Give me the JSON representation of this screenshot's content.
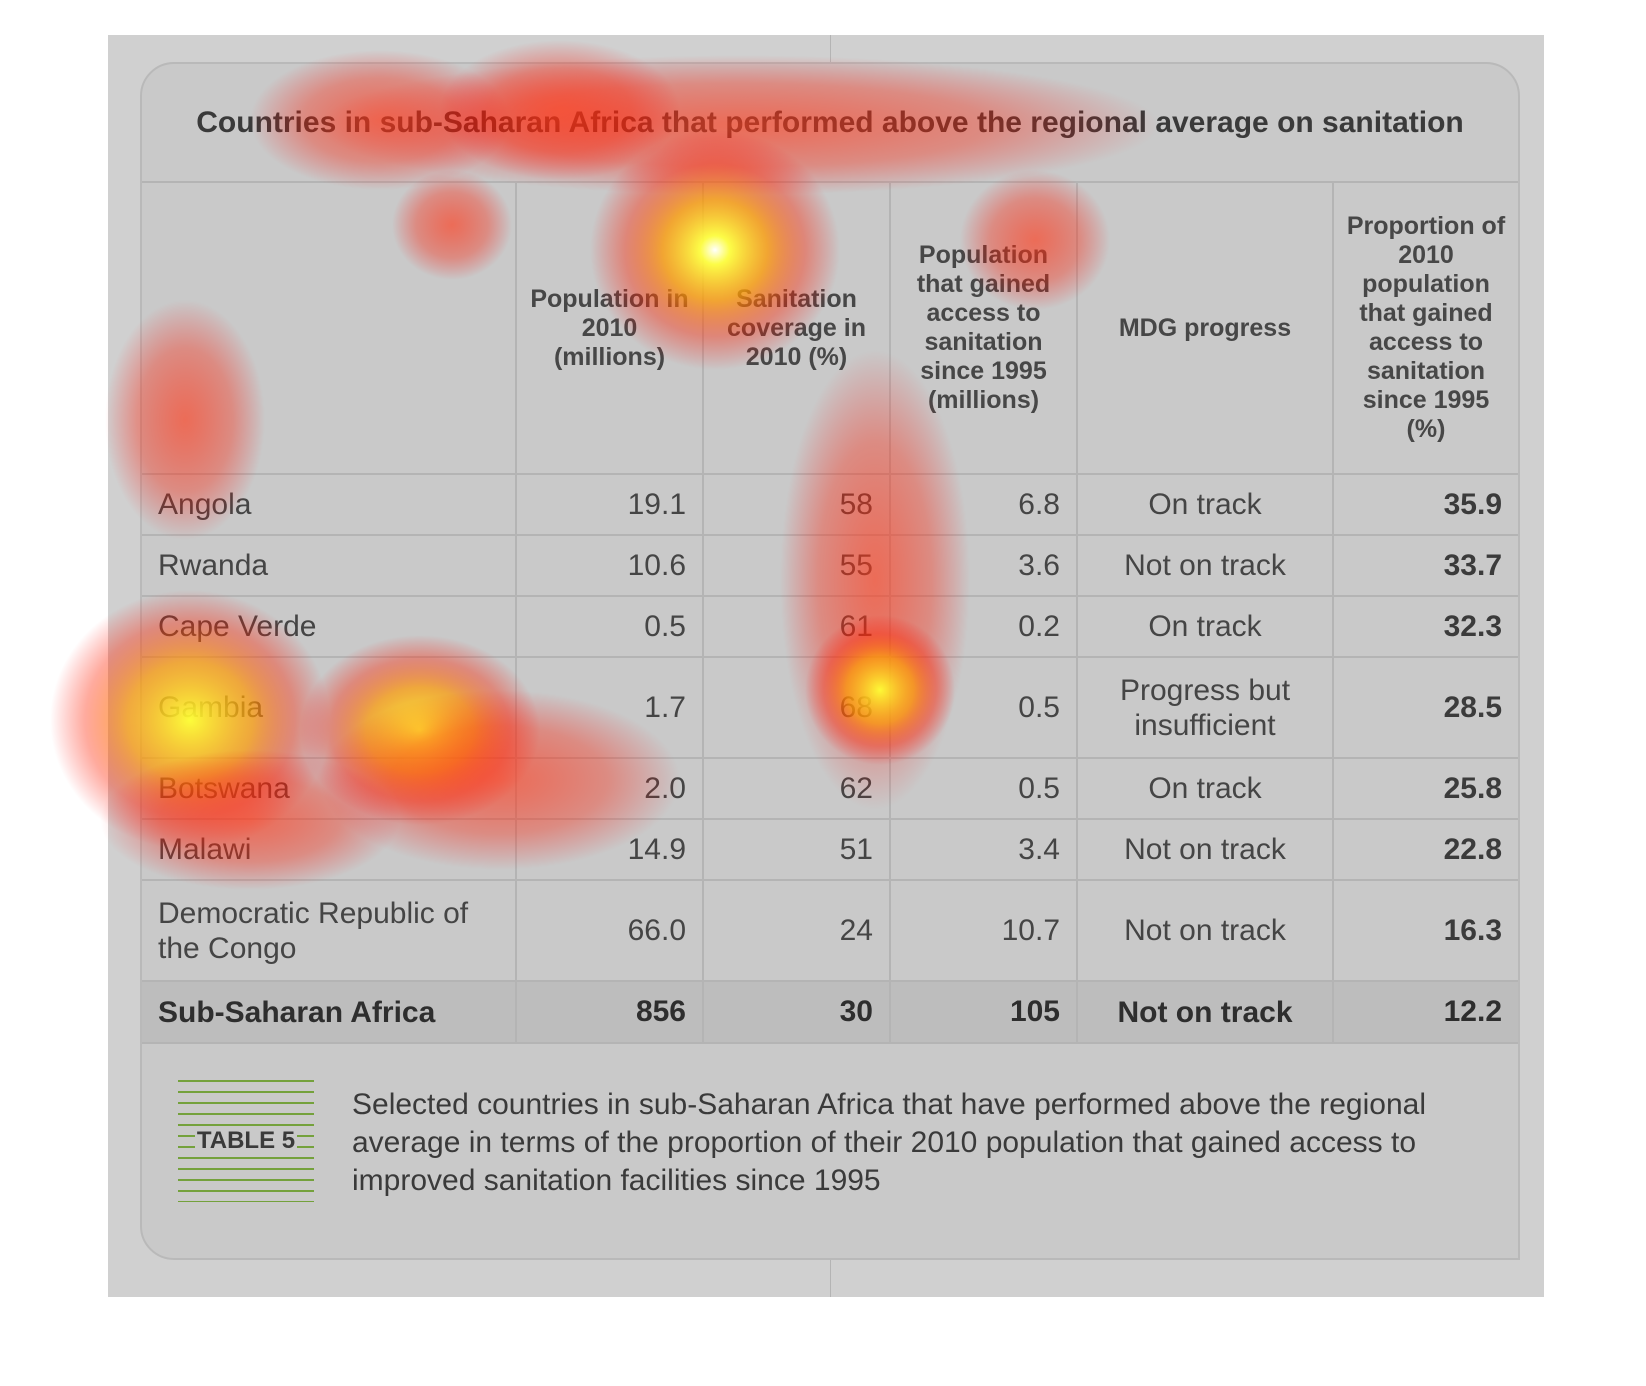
{
  "title": "Countries in sub-Saharan Africa that performed above the regional average on sanitation",
  "columns": [
    "",
    "Population in 2010 (millions)",
    "Sanitation coverage in 2010 (%)",
    "Population that gained access to sanitation since 1995 (millions)",
    "MDG progress",
    "Proportion of 2010 population that gained access to sanitation since 1995 (%)"
  ],
  "rows": [
    {
      "country": "Angola",
      "population": "19.1",
      "coverage": "58",
      "gained": "6.8",
      "mdg": "On track",
      "proportion": "35.9"
    },
    {
      "country": "Rwanda",
      "population": "10.6",
      "coverage": "55",
      "gained": "3.6",
      "mdg": "Not on track",
      "proportion": "33.7"
    },
    {
      "country": "Cape Verde",
      "population": "0.5",
      "coverage": "61",
      "gained": "0.2",
      "mdg": "On track",
      "proportion": "32.3"
    },
    {
      "country": "Gambia",
      "population": "1.7",
      "coverage": "68",
      "gained": "0.5",
      "mdg": "Progress but insufficient",
      "proportion": "28.5"
    },
    {
      "country": "Botswana",
      "population": "2.0",
      "coverage": "62",
      "gained": "0.5",
      "mdg": "On track",
      "proportion": "25.8"
    },
    {
      "country": "Malawi",
      "population": "14.9",
      "coverage": "51",
      "gained": "3.4",
      "mdg": "Not on track",
      "proportion": "22.8"
    },
    {
      "country": "Democratic Republic of the Congo",
      "population": "66.0",
      "coverage": "24",
      "gained": "10.7",
      "mdg": "Not on track",
      "proportion": "16.3"
    }
  ],
  "total": {
    "country": "Sub-Saharan Africa",
    "population": "856",
    "coverage": "30",
    "gained": "105",
    "mdg": "Not on track",
    "proportion": "12.2"
  },
  "table_label": "TABLE 5",
  "caption": "Selected countries in sub-Saharan Africa that have performed above the regional average in terms of the proportion of their 2010 population that gained access to improved sanitation facilities since 1995",
  "colors": {
    "accent_lines": "#74a13c",
    "heatmap_hot": "#ffff33",
    "heatmap_warm": "#ff2a00"
  }
}
